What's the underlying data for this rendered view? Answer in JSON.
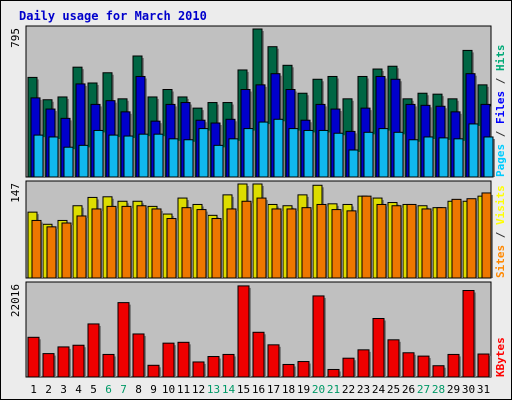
{
  "colors": {
    "background": "#ececec",
    "panel": "#c0c0c0",
    "title": "#0000cc",
    "weekday_tick": "#000000",
    "weekend_tick": "#009966",
    "slash": "#333333"
  },
  "chart_data": {
    "type": "bar",
    "title": "Daily usage for March 2010",
    "categories": [
      "1",
      "2",
      "3",
      "4",
      "5",
      "6",
      "7",
      "8",
      "9",
      "10",
      "11",
      "12",
      "13",
      "14",
      "15",
      "16",
      "17",
      "18",
      "19",
      "20",
      "21",
      "22",
      "23",
      "24",
      "25",
      "26",
      "27",
      "28",
      "29",
      "30",
      "31"
    ],
    "weekend_days": [
      "6",
      "7",
      "13",
      "14",
      "20",
      "21",
      "27",
      "28"
    ],
    "panels": [
      {
        "id": "traffic",
        "max_label": "795",
        "ylim": [
          0,
          795
        ],
        "legend": [
          {
            "text": "Pages",
            "color": "#00ccff"
          },
          {
            "text": "Files",
            "color": "#0000ff"
          },
          {
            "text": "Hits",
            "color": "#00aa77"
          }
        ],
        "series": [
          {
            "name": "Hits",
            "color": "#006644",
            "values": [
              535,
              415,
              430,
              590,
              505,
              560,
              420,
              650,
              430,
              470,
              430,
              370,
              400,
              400,
              575,
              795,
              700,
              600,
              450,
              525,
              540,
              420,
              540,
              580,
              595,
              420,
              450,
              445,
              420,
              680,
              495
            ]
          },
          {
            "name": "Files",
            "color": "#0000cc",
            "values": [
              425,
              365,
              315,
              500,
              390,
              410,
              350,
              540,
              300,
              390,
              400,
              305,
              290,
              310,
              470,
              495,
              555,
              470,
              305,
              390,
              365,
              245,
              370,
              540,
              525,
              390,
              385,
              380,
              350,
              555,
              390
            ]
          },
          {
            "name": "Pages",
            "color": "#11b8ee",
            "values": [
              225,
              215,
              160,
              170,
              250,
              225,
              220,
              230,
              230,
              205,
              200,
              260,
              170,
              205,
              260,
              295,
              310,
              260,
              250,
              250,
              235,
              145,
              240,
              260,
              240,
              200,
              215,
              210,
              205,
              285,
              215
            ]
          }
        ]
      },
      {
        "id": "visitors",
        "max_label": "147",
        "ylim": [
          0,
          147
        ],
        "legend": [
          {
            "text": "Sites",
            "color": "#ff8800"
          },
          {
            "text": "Visits",
            "color": "#ffff00"
          }
        ],
        "series": [
          {
            "name": "Visits",
            "color": "#dddd00",
            "values": [
              103,
              84,
              90,
              113,
              126,
              127,
              120,
              120,
              112,
              100,
              125,
              115,
              98,
              130,
              147,
              147,
              115,
              113,
              130,
              145,
              116,
              115,
              128,
              125,
              118,
              115,
              113,
              110,
              120,
              120,
              128
            ]
          },
          {
            "name": "Sites",
            "color": "#ee7700",
            "values": [
              90,
              80,
              86,
              97,
              108,
              112,
              112,
              113,
              108,
              93,
              110,
              107,
              93,
              108,
              120,
              125,
              108,
              108,
              110,
              115,
              107,
              105,
              128,
              115,
              113,
              115,
              108,
              110,
              123,
              124,
              133
            ]
          }
        ]
      },
      {
        "id": "volume",
        "max_label": "22016",
        "ylim": [
          0,
          22016
        ],
        "legend": [
          {
            "text": "KBytes",
            "color": "#ff0000"
          }
        ],
        "series": [
          {
            "name": "KBytes",
            "color": "#ee0000",
            "values": [
              9500,
              5600,
              7200,
              7600,
              12700,
              5400,
              17800,
              10300,
              2800,
              8100,
              8300,
              3600,
              4900,
              5400,
              21800,
              10700,
              7700,
              3000,
              3700,
              19400,
              1800,
              4500,
              6500,
              14000,
              8900,
              5800,
              5000,
              2700,
              5400,
              20700,
              5500
            ]
          }
        ]
      }
    ]
  }
}
